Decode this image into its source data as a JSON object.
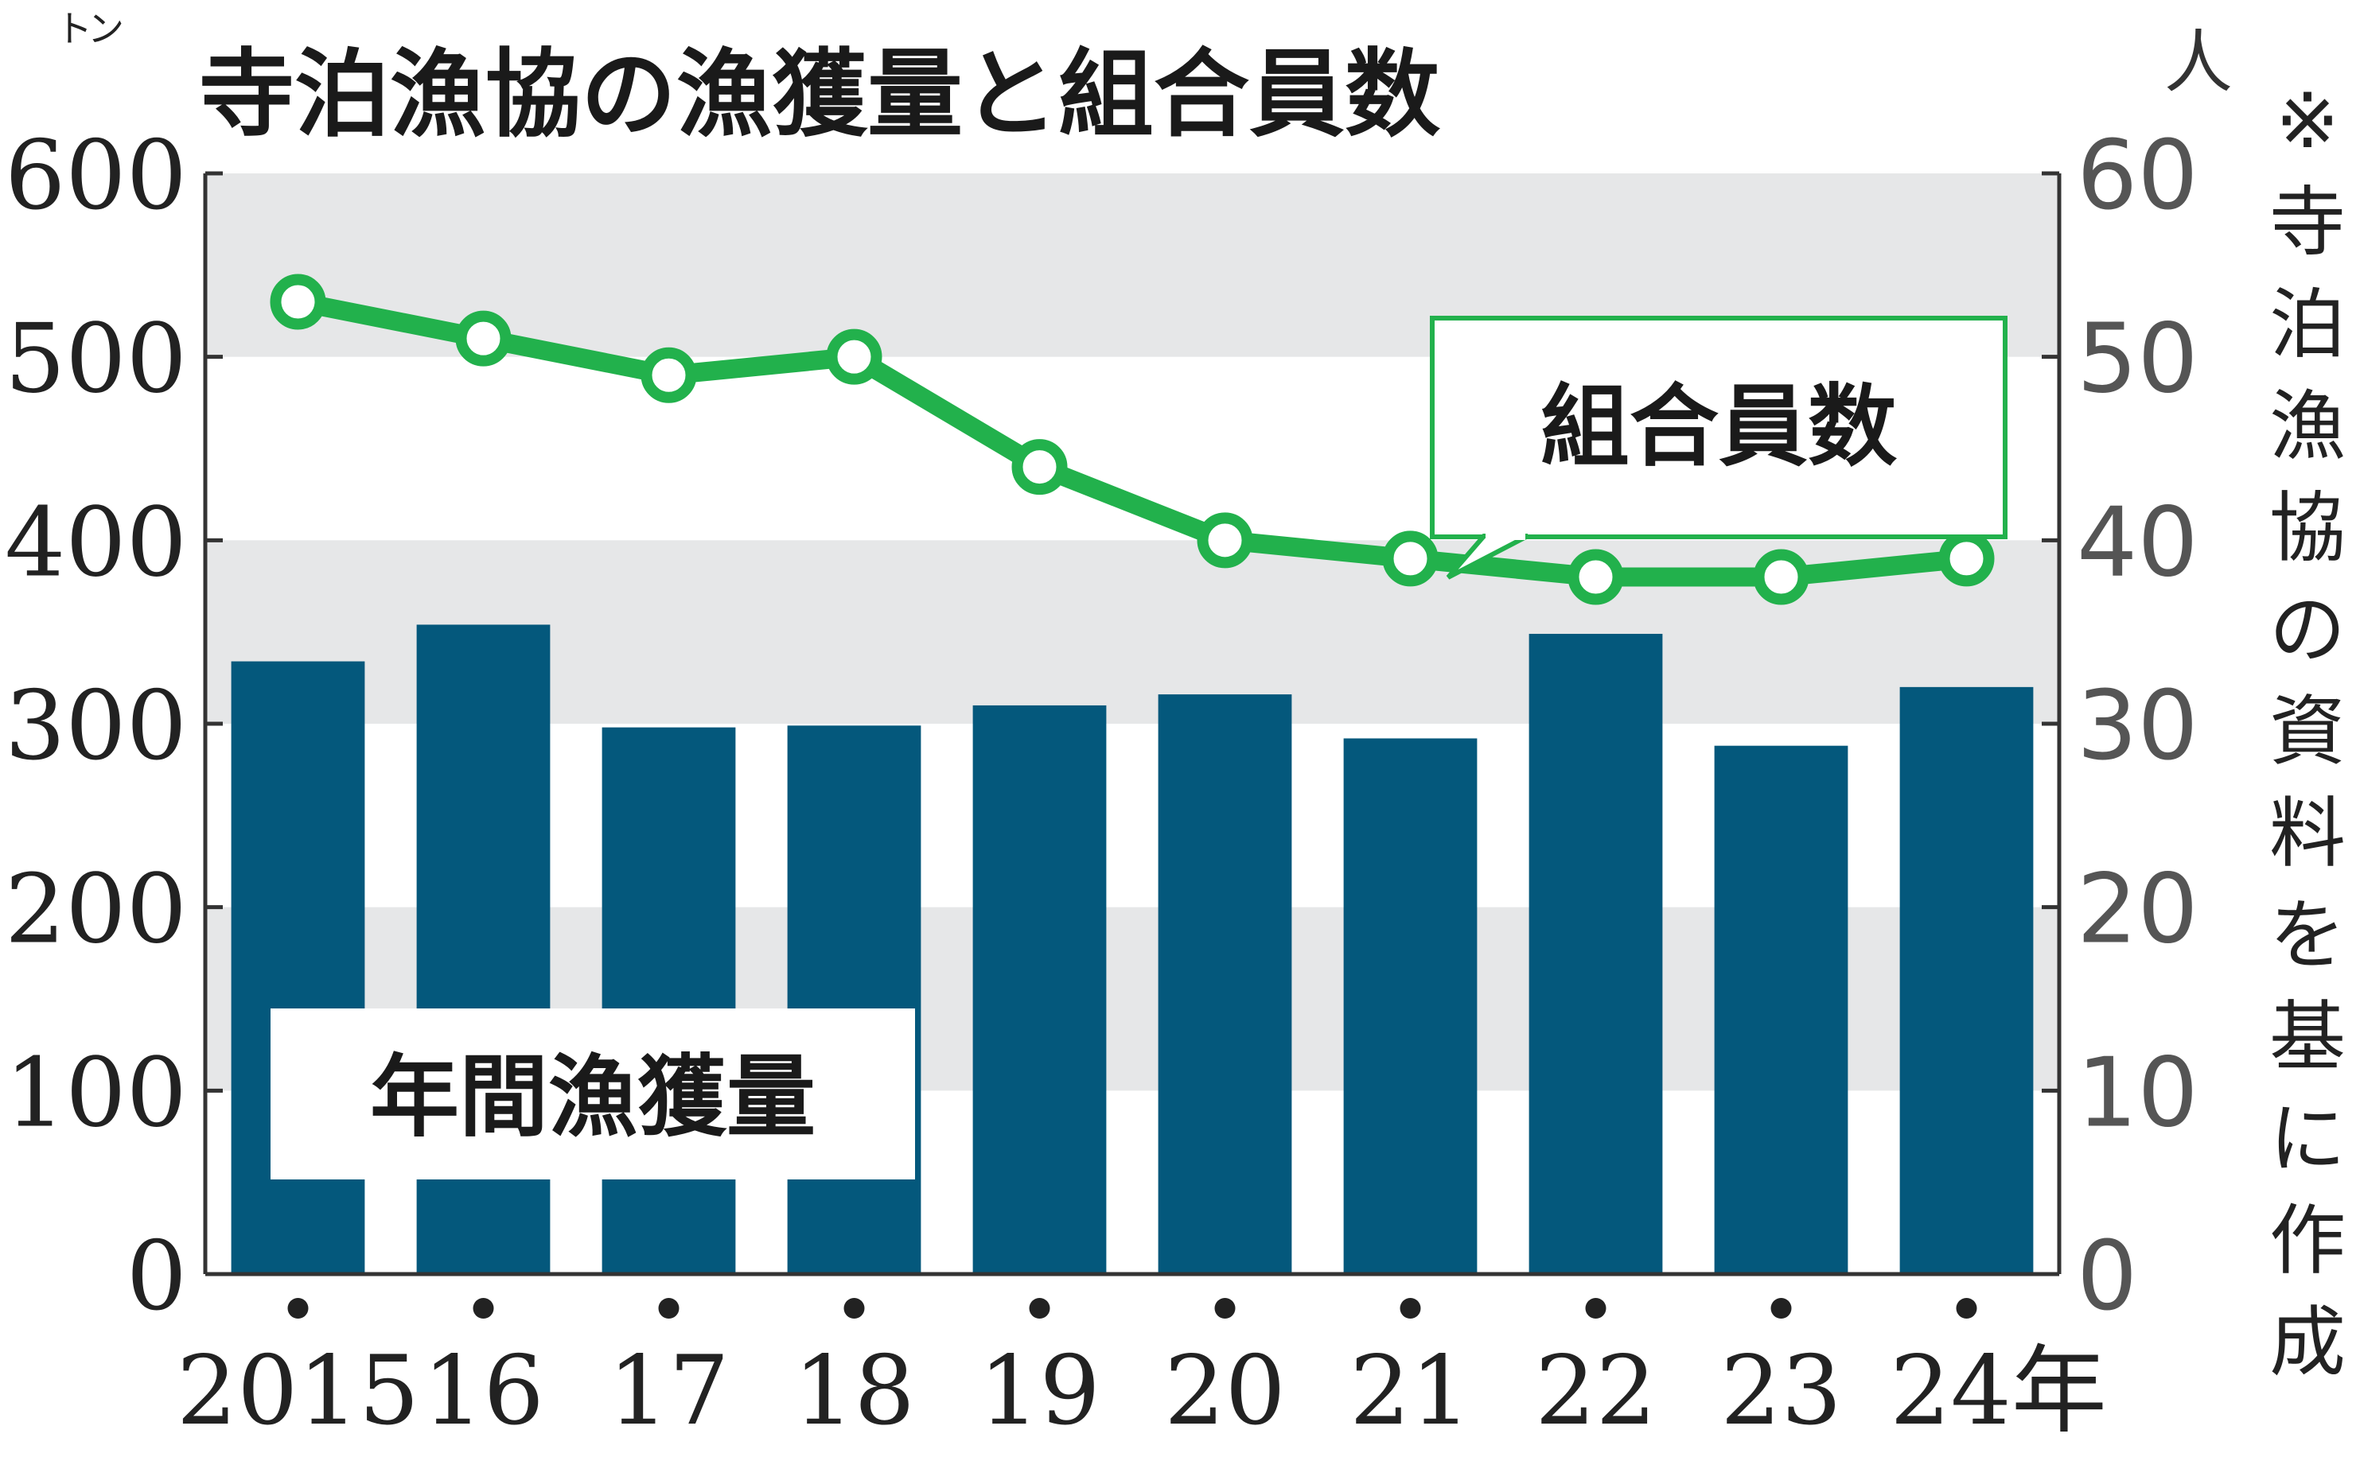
{
  "title": "寺泊漁協の漁獲量と組合員数",
  "source_note": "※寺泊漁協の資料を基に作成",
  "colors": {
    "bar": "#04587c",
    "line": "#22b14c",
    "band": "#e6e7e8",
    "axis": "#333333"
  },
  "chart_data": {
    "type": "bar+line",
    "categories": [
      "2015",
      "16",
      "17",
      "18",
      "19",
      "20",
      "21",
      "22",
      "23",
      "24年"
    ],
    "left_axis": {
      "unit": "トン",
      "ylim": [
        0,
        600
      ],
      "ticks": [
        "0",
        "100",
        "200",
        "300",
        "400",
        "500",
        "600"
      ]
    },
    "right_axis": {
      "unit": "人",
      "ylim": [
        0,
        60
      ],
      "ticks": [
        "0",
        "10",
        "20",
        "30",
        "40",
        "50",
        "60"
      ]
    },
    "series": [
      {
        "name": "年間漁獲量",
        "type": "bar",
        "axis": "left",
        "values": [
          334,
          354,
          298,
          299,
          310,
          316,
          292,
          349,
          288,
          320
        ]
      },
      {
        "name": "組合員数",
        "type": "line",
        "axis": "right",
        "values": [
          53,
          51,
          49,
          50,
          44,
          40,
          39,
          38,
          38,
          39
        ]
      }
    ],
    "grid": "alternating bands"
  }
}
